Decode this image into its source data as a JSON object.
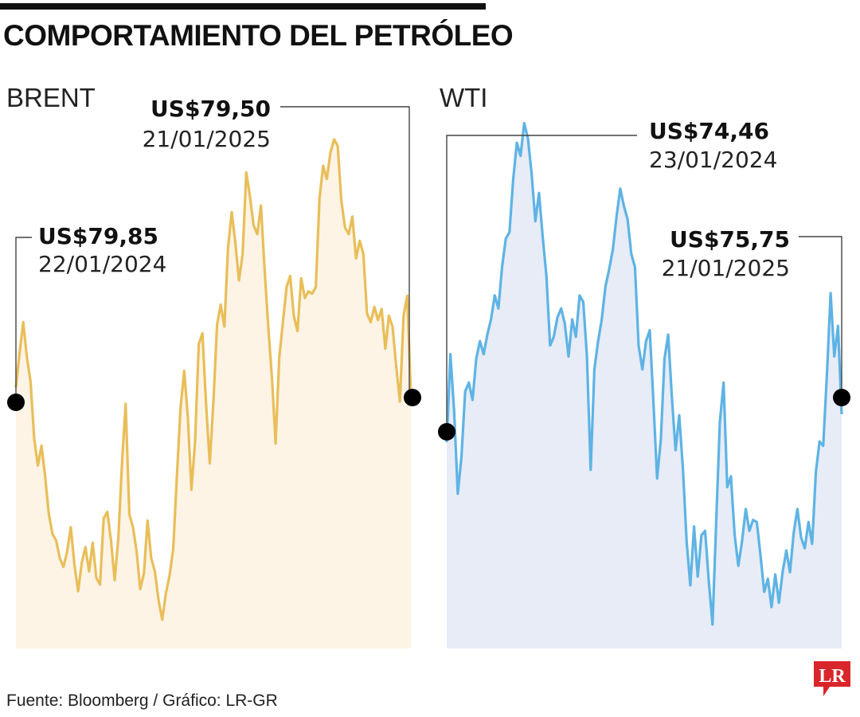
{
  "title": "COMPORTAMIENTO DEL PETRÓLEO",
  "source": "Fuente: Bloomberg / Gráfico: LR-GR",
  "logo_text": "LR",
  "colors": {
    "brent_line": "#E9BE59",
    "brent_fill": "#FDF4E6",
    "wti_line": "#5EB3E4",
    "wti_fill": "#E7ECF7",
    "logo_red": "#D9262A"
  },
  "chart_data": [
    {
      "type": "area",
      "series_name": "BRENT",
      "x_start": "22/01/2024",
      "x_end": "21/01/2025",
      "ylim": [
        68,
        92
      ],
      "values": [
        79.85,
        81.4,
        82.8,
        81.2,
        80.1,
        77.5,
        76.3,
        77.2,
        75.8,
        74.1,
        73.2,
        72.9,
        72.1,
        71.7,
        72.4,
        73.5,
        71.8,
        70.6,
        71.9,
        72.6,
        71.5,
        72.8,
        71.2,
        70.9,
        73.9,
        74.2,
        72.9,
        71.1,
        73.0,
        76.4,
        79.1,
        74.1,
        73.5,
        72.4,
        70.7,
        71.4,
        73.8,
        72.1,
        71.5,
        70.2,
        69.3,
        70.5,
        71.3,
        72.5,
        75.8,
        78.9,
        80.6,
        78.5,
        75.2,
        77.4,
        81.8,
        82.3,
        79.1,
        76.4,
        79.2,
        82.7,
        83.6,
        82.6,
        86.2,
        87.8,
        86.4,
        84.7,
        85.9,
        89.6,
        88.5,
        87.2,
        86.8,
        88.1,
        85.2,
        82.6,
        80.3,
        77.3,
        81.2,
        82.8,
        84.4,
        84.9,
        83.1,
        82.4,
        84.8,
        83.9,
        84.2,
        84.1,
        84.4,
        88.4,
        89.9,
        89.3,
        90.5,
        91.1,
        90.8,
        88.3,
        87.1,
        86.8,
        87.6,
        85.7,
        86.5,
        85.9,
        83.2,
        82.8,
        83.5,
        82.9,
        83.4,
        81.6,
        83.1,
        82.6,
        80.8,
        79.2,
        83.1,
        84.0,
        79.5
      ]
    },
    {
      "type": "area",
      "series_name": "WTI",
      "x_start": "23/01/2024",
      "x_end": "21/01/2025",
      "ylim": [
        65,
        90
      ],
      "values": [
        74.46,
        78.5,
        75.9,
        72.1,
        73.8,
        76.8,
        77.2,
        76.4,
        78.3,
        79.1,
        78.5,
        79.4,
        80.1,
        81.2,
        80.6,
        82.5,
        83.8,
        84.1,
        86.5,
        88.2,
        87.6,
        89.1,
        88.4,
        86.8,
        84.6,
        85.9,
        83.9,
        82.1,
        78.9,
        79.3,
        80.2,
        80.6,
        79.9,
        78.4,
        80.1,
        79.3,
        81.2,
        80.9,
        78.4,
        73.2,
        77.8,
        79.1,
        80.1,
        81.6,
        82.4,
        83.3,
        84.8,
        86.1,
        85.3,
        84.7,
        83.1,
        82.5,
        78.9,
        77.8,
        79.1,
        79.6,
        76.3,
        72.8,
        74.6,
        78.3,
        79.4,
        76.5,
        74.1,
        75.7,
        73.2,
        69.9,
        67.9,
        70.6,
        68.3,
        70.2,
        70.4,
        68.1,
        66.1,
        70.8,
        75.4,
        77.2,
        72.4,
        72.9,
        70.2,
        68.8,
        69.9,
        71.4,
        70.4,
        70.9,
        70.8,
        69.3,
        67.6,
        68.2,
        66.9,
        68.4,
        67.1,
        68.5,
        69.5,
        68.5,
        70.3,
        71.4,
        70.1,
        69.6,
        70.8,
        69.8,
        73.1,
        74.5,
        74.3,
        77.6,
        81.3,
        78.4,
        79.8,
        75.75
      ]
    }
  ],
  "annotations": [
    {
      "price": "US$79,85",
      "date": "22/01/2024"
    },
    {
      "price": "US$79,50",
      "date": "21/01/2025"
    },
    {
      "price": "US$74,46",
      "date": "23/01/2024"
    },
    {
      "price": "US$75,75",
      "date": "21/01/2025"
    }
  ]
}
